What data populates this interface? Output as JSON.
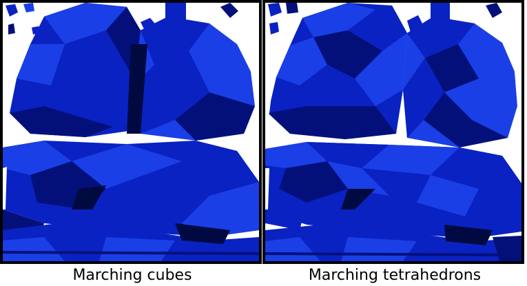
{
  "figure": {
    "panels": [
      {
        "caption": "Marching cubes"
      },
      {
        "caption": "Marching tetrahedrons"
      }
    ],
    "colors": {
      "background": "#ffffff",
      "frame": "#000000",
      "surface_light": "#1a3fe6",
      "surface_mid": "#0a22c2",
      "surface_dark": "#04107a",
      "surface_shadow": "#000a40"
    }
  }
}
